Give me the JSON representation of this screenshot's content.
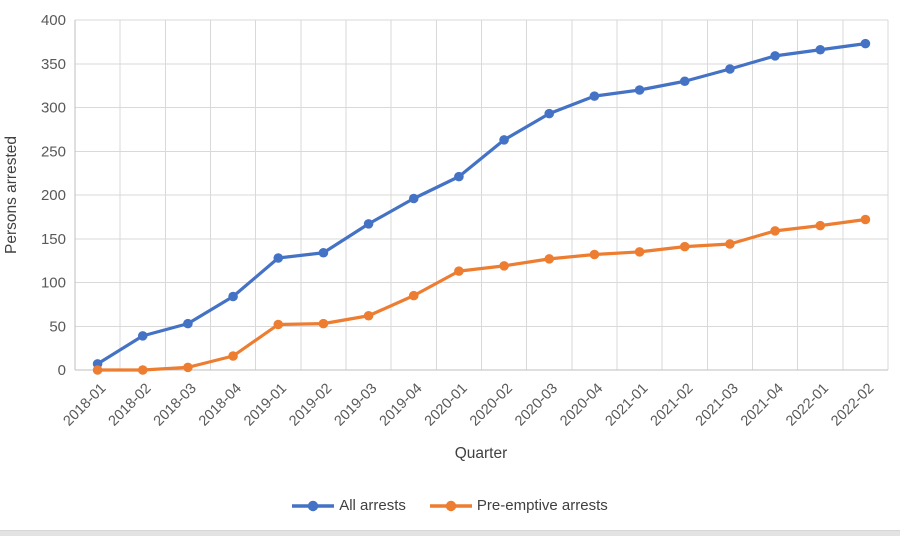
{
  "chart_data": {
    "type": "line",
    "title": "",
    "xlabel": "Quarter",
    "ylabel": "Persons arrested",
    "categories": [
      "2018-01",
      "2018-02",
      "2018-03",
      "2018-04",
      "2019-01",
      "2019-02",
      "2019-03",
      "2019-04",
      "2020-01",
      "2020-02",
      "2020-03",
      "2020-04",
      "2021-01",
      "2021-02",
      "2021-03",
      "2021-04",
      "2022-01",
      "2022-02"
    ],
    "series": [
      {
        "name": "All arrests",
        "color": "#4472C4",
        "values": [
          7,
          39,
          53,
          84,
          128,
          134,
          167,
          196,
          221,
          263,
          293,
          313,
          320,
          330,
          344,
          359,
          366,
          373
        ]
      },
      {
        "name": "Pre-emptive arrests",
        "color": "#ED7D31",
        "values": [
          0,
          0,
          3,
          16,
          52,
          53,
          62,
          85,
          113,
          119,
          127,
          132,
          135,
          141,
          144,
          159,
          165,
          172
        ]
      }
    ],
    "ylim": [
      0,
      400
    ],
    "ytick_step": 50,
    "grid": "on",
    "legend_position": "bottom",
    "marker": "circle"
  },
  "style_colors": {
    "gridline": "#D9D9D9",
    "axis_line": "#BFBFBF",
    "tick_label": "#595959",
    "axis_title": "#404040",
    "legend_text": "#404040",
    "bottom_bar": "#E3E3E3"
  }
}
